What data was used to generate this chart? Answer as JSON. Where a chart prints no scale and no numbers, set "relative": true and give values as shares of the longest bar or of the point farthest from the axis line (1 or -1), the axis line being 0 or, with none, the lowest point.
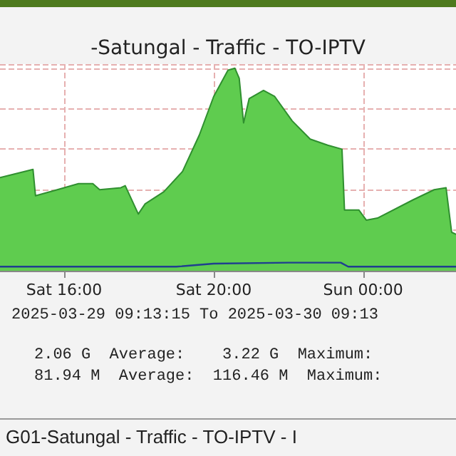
{
  "chart_data": {
    "type": "area",
    "title": "-Satungal - Traffic - TO-IPTV",
    "relative": true,
    "grid": true,
    "marker": "none",
    "xlim": [
      "2025-03-29T14:17",
      "2025-03-30T02:29"
    ],
    "xticks": [
      {
        "value": "2025-03-29T16:00",
        "label": "Sat 16:00"
      },
      {
        "value": "2025-03-29T20:00",
        "label": "Sat 20:00"
      },
      {
        "value": "2025-03-30T00:00",
        "label": "Sun 00:00"
      }
    ],
    "series": [
      {
        "color": "#5fcc4f",
        "x": [
          "2025-03-29T14:17",
          "2025-03-29T15:10",
          "2025-03-29T15:14",
          "2025-03-29T15:49",
          "2025-03-29T16:23",
          "2025-03-29T16:46",
          "2025-03-29T16:57",
          "2025-03-29T17:31",
          "2025-03-29T17:38",
          "2025-03-29T17:59",
          "2025-03-29T18:10",
          "2025-03-29T18:40",
          "2025-03-29T19:10",
          "2025-03-29T19:37",
          "2025-03-29T20:00",
          "2025-03-29T20:23",
          "2025-03-29T20:34",
          "2025-03-29T20:41",
          "2025-03-29T20:48",
          "2025-03-29T20:57",
          "2025-03-29T21:20",
          "2025-03-29T21:38",
          "2025-03-29T22:06",
          "2025-03-29T22:35",
          "2025-03-29T23:03",
          "2025-03-29T23:26",
          "2025-03-29T23:30",
          "2025-03-29T23:53",
          "2025-03-30T00:05",
          "2025-03-30T00:23",
          "2025-03-30T01:20",
          "2025-03-30T01:54",
          "2025-03-30T02:13",
          "2025-03-30T02:22",
          "2025-03-30T02:29"
        ],
        "values": [
          0.46,
          0.5,
          0.37,
          0.4,
          0.43,
          0.43,
          0.4,
          0.41,
          0.42,
          0.28,
          0.33,
          0.39,
          0.49,
          0.67,
          0.86,
          0.99,
          1,
          0.95,
          0.73,
          0.85,
          0.89,
          0.86,
          0.74,
          0.65,
          0.62,
          0.6,
          0.3,
          0.3,
          0.25,
          0.26,
          0.35,
          0.4,
          0.41,
          0.19,
          0.18
        ]
      },
      {
        "type": "line",
        "color": "#1f3f8f",
        "x": [
          "2025-03-29T14:17",
          "2025-03-29T19:00",
          "2025-03-29T20:00",
          "2025-03-29T22:00",
          "2025-03-29T23:24",
          "2025-03-29T23:36",
          "2025-03-30T02:29"
        ],
        "values": [
          0.02,
          0.02,
          0.035,
          0.04,
          0.04,
          0.02,
          0.02
        ]
      }
    ],
    "annotations": [
      "2025-03-29 09:13:15 To 2025-03-30 09:13",
      "2.06 G  Average:    3.22 G  Maximum:",
      "81.94 M  Average:  116.46 M  Maximum:",
      "G01-Satungal - Traffic - TO-IPTV - I"
    ]
  }
}
